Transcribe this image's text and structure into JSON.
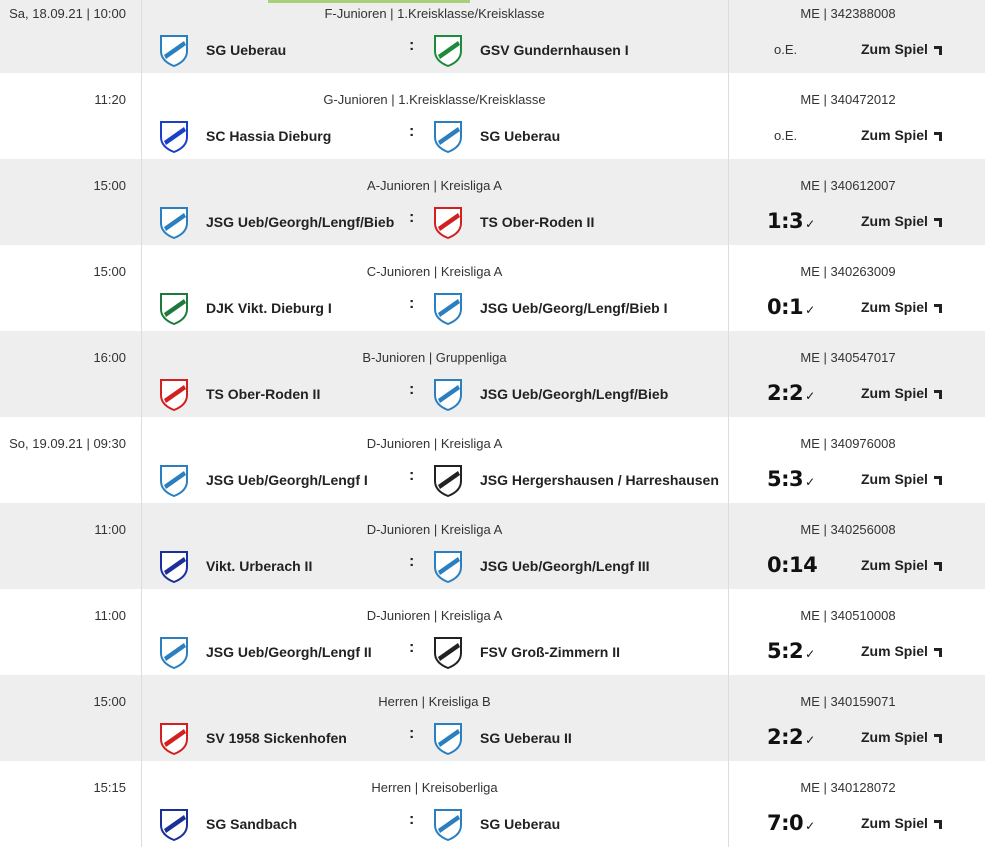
{
  "link_label": "Zum Spiel",
  "matches": [
    {
      "time": "Sa, 18.09.21 | 10:00",
      "category": "F-Junioren | 1.Kreisklasse/Kreisklasse",
      "code": "ME | 342388008",
      "home": "SG Ueberau",
      "home_logo": "#2a7fc0",
      "away": "GSV Gundernhausen I",
      "away_logo": "#1e8a3c",
      "result": "o.E.",
      "confirmed": false
    },
    {
      "time": "11:20",
      "category": "G-Junioren | 1.Kreisklasse/Kreisklasse",
      "code": "ME | 340472012",
      "home": "SC Hassia Dieburg",
      "home_logo": "#1a3fc8",
      "away": "SG Ueberau",
      "away_logo": "#2a7fc0",
      "result": "o.E.",
      "confirmed": false
    },
    {
      "time": "15:00",
      "category": "A-Junioren | Kreisliga A",
      "code": "ME | 340612007",
      "home": "JSG Ueb/Georgh/Lengf/Bieb",
      "home_logo": "#2a7fc0",
      "away": "TS Ober-Roden II",
      "away_logo": "#d22020",
      "result": "1:3",
      "confirmed": true
    },
    {
      "time": "15:00",
      "category": "C-Junioren | Kreisliga A",
      "code": "ME | 340263009",
      "home": "DJK Vikt. Dieburg I",
      "home_logo": "#1e7a3c",
      "away": "JSG Ueb/Georg/Lengf/Bieb I",
      "away_logo": "#2a7fc0",
      "result": "0:1",
      "confirmed": true
    },
    {
      "time": "16:00",
      "category": "B-Junioren | Gruppenliga",
      "code": "ME | 340547017",
      "home": "TS Ober-Roden II",
      "home_logo": "#d22020",
      "away": "JSG Ueb/Georgh/Lengf/Bieb",
      "away_logo": "#2a7fc0",
      "result": "2:2",
      "confirmed": true
    },
    {
      "time": "So, 19.09.21 | 09:30",
      "category": "D-Junioren | Kreisliga A",
      "code": "ME | 340976008",
      "home": "JSG Ueb/Georgh/Lengf I",
      "home_logo": "#2a7fc0",
      "away": "JSG Hergershausen / Harreshausen",
      "away_logo": "#222222",
      "result": "5:3",
      "confirmed": true
    },
    {
      "time": "11:00",
      "category": "D-Junioren | Kreisliga A",
      "code": "ME | 340256008",
      "home": "Vikt. Urberach II",
      "home_logo": "#1a2f9a",
      "away": "JSG Ueb/Georgh/Lengf III",
      "away_logo": "#2a7fc0",
      "result": "0:14",
      "confirmed": false
    },
    {
      "time": "11:00",
      "category": "D-Junioren | Kreisliga A",
      "code": "ME | 340510008",
      "home": "JSG Ueb/Georgh/Lengf II",
      "home_logo": "#2a7fc0",
      "away": "FSV Groß-Zimmern II",
      "away_logo": "#222222",
      "result": "5:2",
      "confirmed": true
    },
    {
      "time": "15:00",
      "category": "Herren | Kreisliga B",
      "code": "ME | 340159071",
      "home": "SV 1958 Sickenhofen",
      "home_logo": "#d22020",
      "away": "SG Ueberau II",
      "away_logo": "#2a7fc0",
      "result": "2:2",
      "confirmed": true
    },
    {
      "time": "15:15",
      "category": "Herren | Kreisoberliga",
      "code": "ME | 340128072",
      "home": "SG Sandbach",
      "home_logo": "#1a2f9a",
      "away": "SG Ueberau",
      "away_logo": "#2a7fc0",
      "result": "7:0",
      "confirmed": true
    }
  ]
}
